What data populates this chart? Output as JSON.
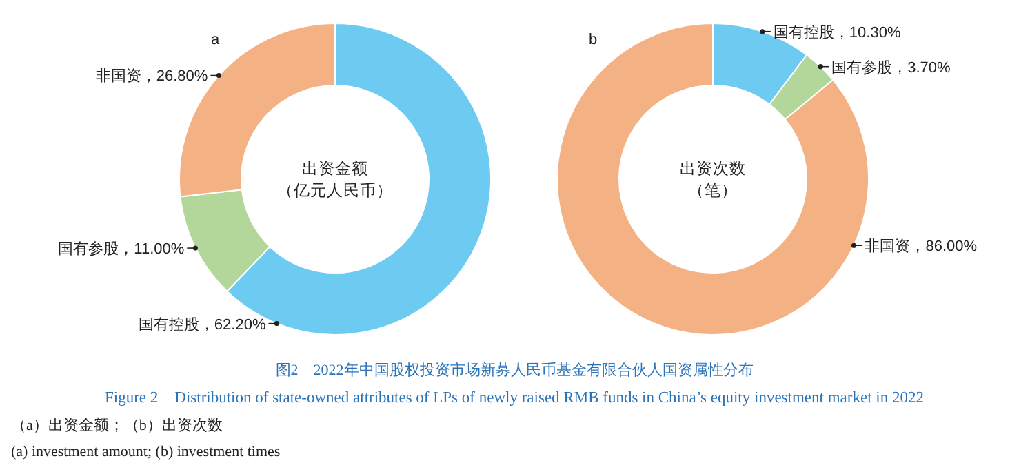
{
  "chart_data": [
    {
      "type": "donut",
      "title": "a",
      "categories": [
        "国有控股",
        "国有参股",
        "非国资"
      ],
      "values": [
        62.2,
        11.0,
        26.8
      ],
      "value_labels": [
        "，62.20%",
        "，11.00%",
        "，26.80%"
      ],
      "colors": [
        "#6dcbf2",
        "#b3d69a",
        "#f4b183"
      ],
      "annotations": [
        "出资金额",
        "（亿元人民币）"
      ]
    },
    {
      "type": "donut",
      "title": "b",
      "categories": [
        "国有控股",
        "国有参股",
        "非国资"
      ],
      "values": [
        10.3,
        3.7,
        86.0
      ],
      "value_labels": [
        "，10.30%",
        "，3.70%",
        "，86.00%"
      ],
      "colors": [
        "#6dcbf2",
        "#b3d69a",
        "#f4b183"
      ],
      "annotations": [
        "出资次数",
        "（笔）"
      ]
    },
    {
      "type": "other",
      "title": "图2　2022年中国股权投资市场新募人民币基金有限合伙人国资属性分布",
      "subtitle": "Figure 2　Distribution of state-owned attributes of LPs of newly raised RMB funds in China’s equity investment market in 2022",
      "annotations": [
        "（a）出资金额；（b）出资次数",
        "(a) investment amount; (b) investment times"
      ]
    }
  ]
}
